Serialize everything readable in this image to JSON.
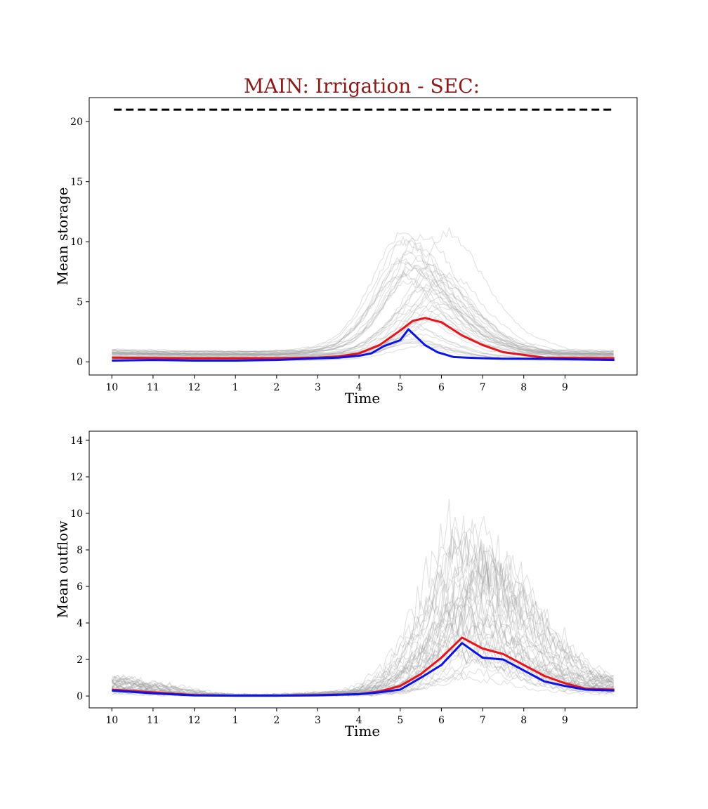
{
  "figure": {
    "title": "MAIN: Irrigation - SEC:",
    "title_color": "#8b1a1a"
  },
  "colors": {
    "ensemble": "#9a9a9a",
    "red_series": "#e8141c",
    "blue_series": "#0a14e6",
    "capacity": "#000000"
  },
  "chart_data": [
    {
      "type": "line",
      "xlabel": "Time",
      "ylabel": "Mean storage",
      "xlim": [
        -0.55,
        12.75
      ],
      "ylim": [
        -1.1,
        22.0
      ],
      "xticks": [
        0,
        1,
        2,
        3,
        4,
        5,
        6,
        7,
        8,
        9,
        10,
        11
      ],
      "xticklabels": [
        "10",
        "11",
        "12",
        "1",
        "2",
        "3",
        "4",
        "5",
        "6",
        "7",
        "8",
        "9"
      ],
      "yticks": [
        0,
        5,
        10,
        15,
        20
      ],
      "capacity_line": {
        "y": 21.0,
        "x": [
          0.05,
          12.2
        ],
        "style": "dashed"
      },
      "series": [
        {
          "x": [
            0,
            1,
            2,
            3,
            4,
            5,
            5.5,
            6,
            6.5,
            7,
            7.3,
            7.6,
            8,
            8.5,
            9,
            9.5,
            10.5,
            12.2
          ],
          "values": [
            0.35,
            0.32,
            0.3,
            0.3,
            0.3,
            0.35,
            0.45,
            0.7,
            1.4,
            2.6,
            3.4,
            3.65,
            3.3,
            2.2,
            1.4,
            0.8,
            0.35,
            0.3
          ]
        },
        {
          "x": [
            0,
            1,
            2,
            3,
            4,
            5,
            5.5,
            6,
            6.3,
            6.6,
            7,
            7.2,
            7.6,
            7.9,
            8.3,
            8.6,
            9,
            9.5,
            10.5,
            12.2
          ],
          "values": [
            0.1,
            0.15,
            0.1,
            0.1,
            0.15,
            0.3,
            0.35,
            0.5,
            0.7,
            1.3,
            1.8,
            2.7,
            1.4,
            0.8,
            0.4,
            0.35,
            0.3,
            0.25,
            0.25,
            0.15
          ]
        }
      ]
    },
    {
      "type": "line",
      "xlabel": "Time",
      "ylabel": "Mean outflow",
      "xlim": [
        -0.55,
        12.75
      ],
      "ylim": [
        -0.65,
        14.5
      ],
      "xticks": [
        0,
        1,
        2,
        3,
        4,
        5,
        6,
        7,
        8,
        9,
        10,
        11
      ],
      "xticklabels": [
        "10",
        "11",
        "12",
        "1",
        "2",
        "3",
        "4",
        "5",
        "6",
        "7",
        "8",
        "9"
      ],
      "yticks": [
        0,
        2,
        4,
        6,
        8,
        10,
        12,
        14
      ],
      "series": [
        {
          "x": [
            0,
            1,
            2,
            3,
            4,
            5,
            6,
            6.5,
            7,
            7.5,
            8,
            8.5,
            9,
            9.5,
            10,
            10.5,
            11,
            11.5,
            12.2
          ],
          "values": [
            0.35,
            0.2,
            0.05,
            0.02,
            0.02,
            0.05,
            0.1,
            0.25,
            0.55,
            1.2,
            2.1,
            3.2,
            2.6,
            2.3,
            1.7,
            1.1,
            0.7,
            0.4,
            0.35
          ]
        },
        {
          "x": [
            0,
            1,
            2,
            3,
            4,
            5,
            6,
            6.5,
            7,
            7.5,
            8,
            8.5,
            9,
            9.5,
            10,
            10.5,
            11,
            11.5,
            12.2
          ],
          "values": [
            0.3,
            0.15,
            0.03,
            0.02,
            0.02,
            0.04,
            0.1,
            0.2,
            0.35,
            1.0,
            1.7,
            2.9,
            2.1,
            2.0,
            1.4,
            0.8,
            0.55,
            0.35,
            0.3
          ]
        }
      ]
    }
  ]
}
